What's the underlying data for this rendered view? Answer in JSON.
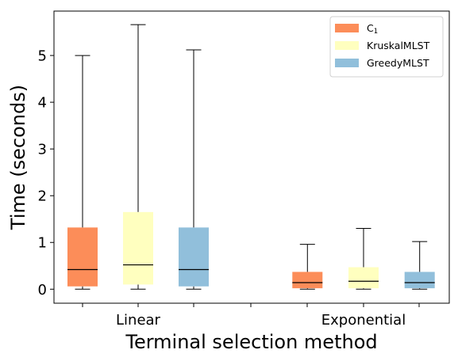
{
  "chart_data": {
    "type": "boxplot",
    "xlabel": "Terminal selection method",
    "ylabel": "Time (seconds)",
    "ylim": [
      -0.3,
      5.95
    ],
    "yticks": [
      0,
      1,
      2,
      3,
      4,
      5
    ],
    "categories": [
      "Linear",
      "Exponential"
    ],
    "legend_position": "top-right",
    "grid": false,
    "series": [
      {
        "name": "C",
        "name_subscript": "1",
        "color": "#fc8d59",
        "boxes": [
          {
            "whislo": 0.0,
            "q1": 0.06,
            "med": 0.42,
            "q3": 1.32,
            "whishi": 5.0
          },
          {
            "whislo": 0.0,
            "q1": 0.02,
            "med": 0.14,
            "q3": 0.37,
            "whishi": 0.96
          }
        ]
      },
      {
        "name": "KruskalMLST",
        "color": "#ffffbf",
        "boxes": [
          {
            "whislo": 0.0,
            "q1": 0.1,
            "med": 0.52,
            "q3": 1.65,
            "whishi": 5.66
          },
          {
            "whislo": 0.0,
            "q1": 0.02,
            "med": 0.17,
            "q3": 0.47,
            "whishi": 1.3
          }
        ]
      },
      {
        "name": "GreedyMLST",
        "color": "#91bfdb",
        "boxes": [
          {
            "whislo": 0.0,
            "q1": 0.06,
            "med": 0.42,
            "q3": 1.32,
            "whishi": 5.12
          },
          {
            "whislo": 0.0,
            "q1": 0.02,
            "med": 0.14,
            "q3": 0.37,
            "whishi": 1.02
          }
        ]
      }
    ]
  }
}
